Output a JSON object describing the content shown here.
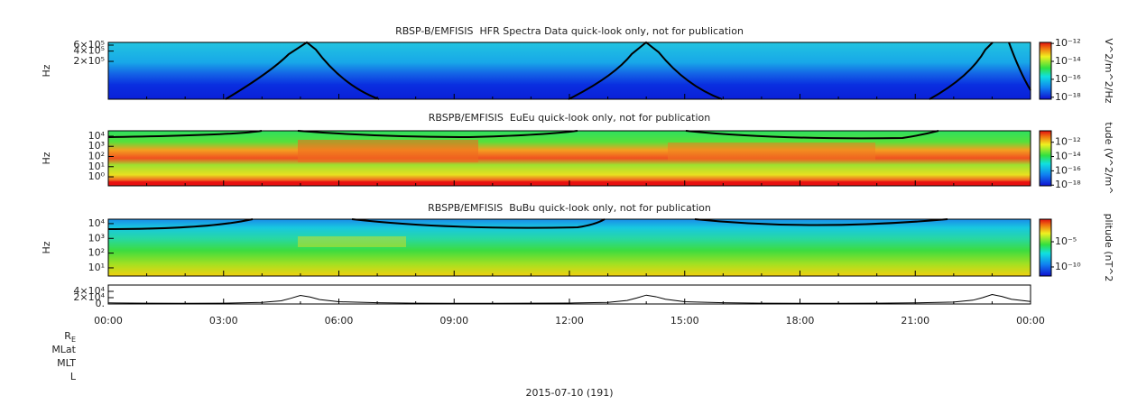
{
  "chart_data": [
    {
      "type": "spectrogram",
      "title": "RBSP-B/EMFISIS  HFR Spectra Data quick-look only, not for publication",
      "ylabel": "Hz",
      "log": true,
      "ylim": [
        15500,
        720000
      ],
      "yticks": [
        {
          "value": 200000,
          "label": "2×10⁵"
        },
        {
          "value": 400000,
          "label": "4×10⁵"
        },
        {
          "value": 600000,
          "label": "6×10⁵"
        }
      ],
      "colorbar_label": "V^2/m^2/Hz",
      "clim": [
        6e-19,
        1.3e-12
      ],
      "cticks": [
        {
          "value": 1e-12,
          "label": "10⁻¹²"
        },
        {
          "value": 1e-14,
          "label": "10⁻¹⁴"
        },
        {
          "value": 1e-16,
          "label": "10⁻¹⁶"
        },
        {
          "value": 1e-18,
          "label": "10⁻¹⁸"
        }
      ]
    },
    {
      "type": "spectrogram",
      "title": "RBSPB/EMFISIS  EuEu quick-look only, not for publication",
      "ylabel": "Hz",
      "log": true,
      "ylim": [
        0.13,
        34000
      ],
      "yticks": [
        {
          "value": 1,
          "label": "10⁰"
        },
        {
          "value": 10,
          "label": "10¹"
        },
        {
          "value": 100,
          "label": "10²"
        },
        {
          "value": 1000,
          "label": "10³"
        },
        {
          "value": 10000,
          "label": "10⁴"
        }
      ],
      "colorbar_label": "tude (V^2/m^",
      "clim": [
        8e-19,
        4e-11
      ],
      "cticks": [
        {
          "value": 1e-12,
          "label": "10⁻¹²"
        },
        {
          "value": 1e-14,
          "label": "10⁻¹⁴"
        },
        {
          "value": 1e-16,
          "label": "10⁻¹⁶"
        },
        {
          "value": 1e-18,
          "label": "10⁻¹⁸"
        }
      ]
    },
    {
      "type": "spectrogram",
      "title": "RBSPB/EMFISIS  BuBu quick-look only, not for publication",
      "ylabel": "Hz",
      "log": true,
      "ylim": [
        2.8,
        20000
      ],
      "yticks": [
        {
          "value": 10,
          "label": "10¹"
        },
        {
          "value": 100,
          "label": "10²"
        },
        {
          "value": 1000,
          "label": "10³"
        },
        {
          "value": 10000,
          "label": "10⁴"
        }
      ],
      "colorbar_label": "plitude (nT^2",
      "clim": [
        1.6e-12,
        0.3
      ],
      "cticks": [
        {
          "value": 1e-05,
          "label": "10⁻⁵"
        },
        {
          "value": 1e-10,
          "label": "10⁻¹⁰"
        }
      ]
    },
    {
      "type": "line",
      "color": "#000000",
      "ylim": [
        0,
        60000
      ],
      "yticks": [
        {
          "value": 0,
          "label": "0."
        },
        {
          "value": 20000,
          "label": "2×10⁴"
        },
        {
          "value": 40000,
          "label": "4×10⁴"
        }
      ],
      "x": [
        0,
        1,
        2,
        3,
        4,
        4.5,
        4.75,
        5,
        5.25,
        5.5,
        6,
        7,
        8,
        9,
        10,
        11,
        12,
        13,
        13.5,
        13.75,
        14,
        14.25,
        14.5,
        15,
        16,
        17,
        18,
        19,
        20,
        21,
        22,
        22.5,
        22.75,
        23,
        23.25,
        23.5,
        24
      ],
      "values": [
        3500,
        2500,
        2000,
        2500,
        5000,
        10000,
        18000,
        27000,
        22000,
        14000,
        7000,
        4000,
        2500,
        2000,
        2000,
        2500,
        3000,
        5000,
        11000,
        19000,
        28000,
        23000,
        15000,
        7000,
        4000,
        2500,
        2000,
        2000,
        2500,
        3500,
        6000,
        12000,
        20000,
        30000,
        24000,
        15000,
        8000
      ],
      "xlim": [
        0,
        24
      ],
      "xticks": [
        {
          "value": 0,
          "label": "00:00"
        },
        {
          "value": 3,
          "label": "03:00"
        },
        {
          "value": 6,
          "label": "06:00"
        },
        {
          "value": 9,
          "label": "09:00"
        },
        {
          "value": 12,
          "label": "12:00"
        },
        {
          "value": 15,
          "label": "15:00"
        },
        {
          "value": 18,
          "label": "18:00"
        },
        {
          "value": 21,
          "label": "21:00"
        },
        {
          "value": 24,
          "label": "00:00"
        }
      ],
      "row_labels": [
        {
          "main": "R",
          "sub": "E"
        },
        "MLat",
        "MLT",
        "L"
      ],
      "date": "2015-07-10 (191)"
    }
  ]
}
